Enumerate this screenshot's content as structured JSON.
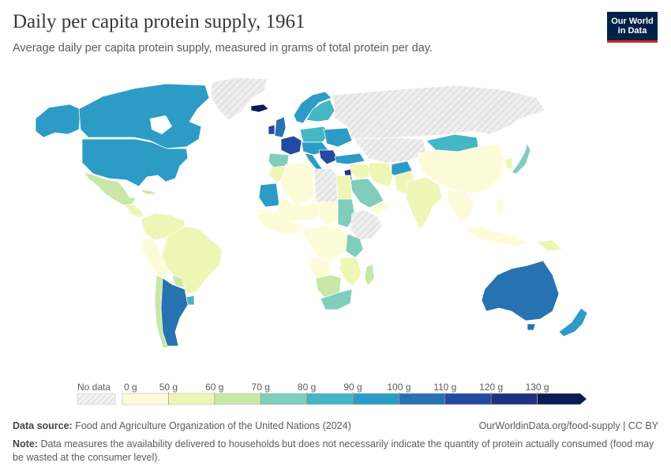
{
  "title": "Daily per capita protein supply, 1961",
  "subtitle": "Average daily per capita protein supply, measured in grams of total protein per day.",
  "logo": {
    "line1": "Our World",
    "line2": "in Data"
  },
  "legend": {
    "no_data_label": "No data",
    "bins": [
      {
        "label": "0 g",
        "color": "#fdfcd9"
      },
      {
        "label": "50 g",
        "color": "#eef6b5"
      },
      {
        "label": "60 g",
        "color": "#c9e7a8"
      },
      {
        "label": "70 g",
        "color": "#81cdbb"
      },
      {
        "label": "80 g",
        "color": "#45b6c3"
      },
      {
        "label": "90 g",
        "color": "#2c9cc6"
      },
      {
        "label": "100 g",
        "color": "#2772b1"
      },
      {
        "label": "110 g",
        "color": "#2549a0"
      },
      {
        "label": "120 g",
        "color": "#22317f"
      },
      {
        "label": "130 g",
        "color": "#0c1b56"
      }
    ]
  },
  "colors": {
    "no_data": "#e8e8e8",
    "border": "#ffffff",
    "ocean": "#ffffff"
  },
  "footer": {
    "source_label": "Data source:",
    "source_text": "Food and Agriculture Organization of the United Nations (2024)",
    "url": "OurWorldinData.org/food-supply | CC BY",
    "note_label": "Note:",
    "note_text": "Data measures the availability delivered to households but does not necessarily indicate the quantity of protein actually consumed (food may be wasted at the consumer level)."
  }
}
